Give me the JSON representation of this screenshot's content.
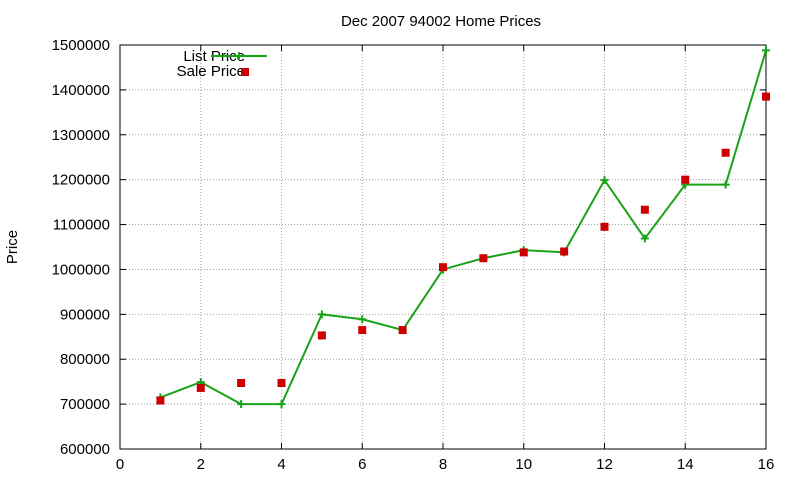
{
  "chart_data": {
    "type": "line",
    "title": "Dec 2007 94002 Home Prices",
    "xlabel": "",
    "ylabel": "Price",
    "xlim": [
      0,
      16
    ],
    "ylim": [
      600000,
      1500000
    ],
    "x_ticks": [
      0,
      2,
      4,
      6,
      8,
      10,
      12,
      14,
      16
    ],
    "y_ticks": [
      600000,
      700000,
      800000,
      900000,
      1000000,
      1100000,
      1200000,
      1300000,
      1400000,
      1500000
    ],
    "grid": true,
    "legend_position": "top-left",
    "series": [
      {
        "name": "List Price",
        "style": "line-with-plus-markers",
        "color": "#19a319",
        "x": [
          1,
          2,
          3,
          4,
          5,
          6,
          7,
          8,
          9,
          10,
          11,
          12,
          13,
          14,
          15,
          16
        ],
        "values": [
          715000,
          749000,
          700000,
          700000,
          900000,
          889000,
          865000,
          1000000,
          1025000,
          1043000,
          1038000,
          1199000,
          1069000,
          1189000,
          1189000,
          1488000
        ]
      },
      {
        "name": "Sale Price",
        "style": "square-markers",
        "color": "#cc0000",
        "x": [
          1,
          2,
          3,
          4,
          5,
          6,
          7,
          8,
          9,
          10,
          11,
          12,
          13,
          14,
          15,
          16
        ],
        "values": [
          708000,
          736000,
          747000,
          747000,
          853000,
          865000,
          865000,
          1005000,
          1025000,
          1038000,
          1040000,
          1095000,
          1133000,
          1200000,
          1260000,
          1385000
        ]
      }
    ]
  }
}
